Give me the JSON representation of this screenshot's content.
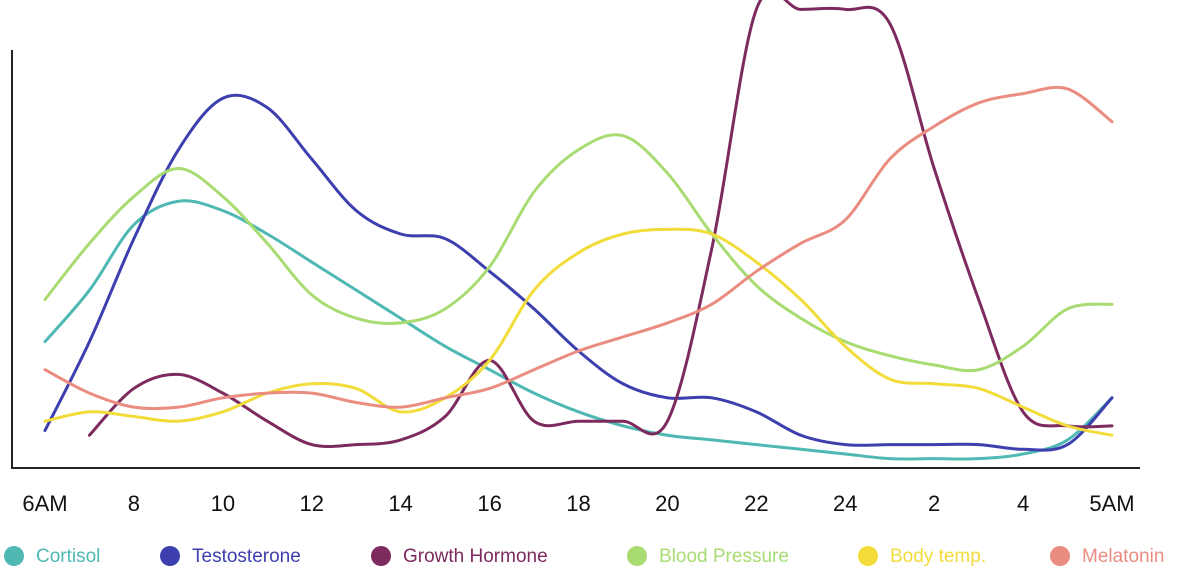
{
  "chart_data": {
    "type": "line",
    "categories": [
      "6AM",
      null,
      "8",
      null,
      "10",
      null,
      "12",
      null,
      "14",
      null,
      "16",
      null,
      "18",
      null,
      "20",
      null,
      "22",
      null,
      "24",
      null,
      "2",
      null,
      "4",
      null,
      "5AM"
    ],
    "ylim": [
      0,
      100
    ],
    "series": [
      {
        "name": "Cortisol",
        "color": "#4fb8b3",
        "values": [
          27,
          38,
          52,
          57,
          55,
          50,
          44,
          38,
          32,
          26,
          21,
          16,
          12,
          9,
          7,
          6,
          5,
          4,
          3,
          2,
          2,
          2,
          3,
          6,
          15
        ]
      },
      {
        "name": "Testosterone",
        "color": "#3d3fae",
        "values": [
          8,
          27,
          49,
          68,
          79,
          77,
          66,
          55,
          50,
          49,
          42,
          34,
          25,
          18,
          15,
          15,
          12,
          7,
          5,
          5,
          5,
          5,
          4,
          5,
          15
        ]
      },
      {
        "name": "Growth Hormone",
        "color": "#7d2a5e",
        "values": [
          null,
          7,
          17,
          20,
          16,
          10,
          5,
          5,
          6,
          11,
          23,
          10,
          10,
          10,
          10,
          47,
          98,
          98,
          98,
          95,
          64,
          36,
          12,
          9,
          9
        ]
      },
      {
        "name": "Blood Pressure",
        "color": "#a8dc72",
        "values": [
          36,
          48,
          58,
          64,
          58,
          48,
          37,
          32,
          31,
          34,
          43,
          59,
          68,
          71,
          63,
          50,
          39,
          32,
          27,
          24,
          22,
          21,
          26,
          34,
          35
        ]
      },
      {
        "name": "Body temp.",
        "color": "#f2dc3a",
        "values": [
          10,
          12,
          11,
          10,
          12,
          16,
          18,
          17,
          12,
          15,
          23,
          38,
          46,
          50,
          51,
          50,
          44,
          36,
          26,
          19,
          18,
          17,
          13,
          9,
          7
        ]
      },
      {
        "name": "Melatonin",
        "color": "#ea8c80",
        "values": [
          21,
          16,
          13,
          13,
          15,
          16,
          16,
          14,
          13,
          15,
          17,
          21,
          25,
          28,
          31,
          35,
          42,
          48,
          53,
          66,
          73,
          78,
          80,
          81,
          74
        ]
      }
    ]
  }
}
